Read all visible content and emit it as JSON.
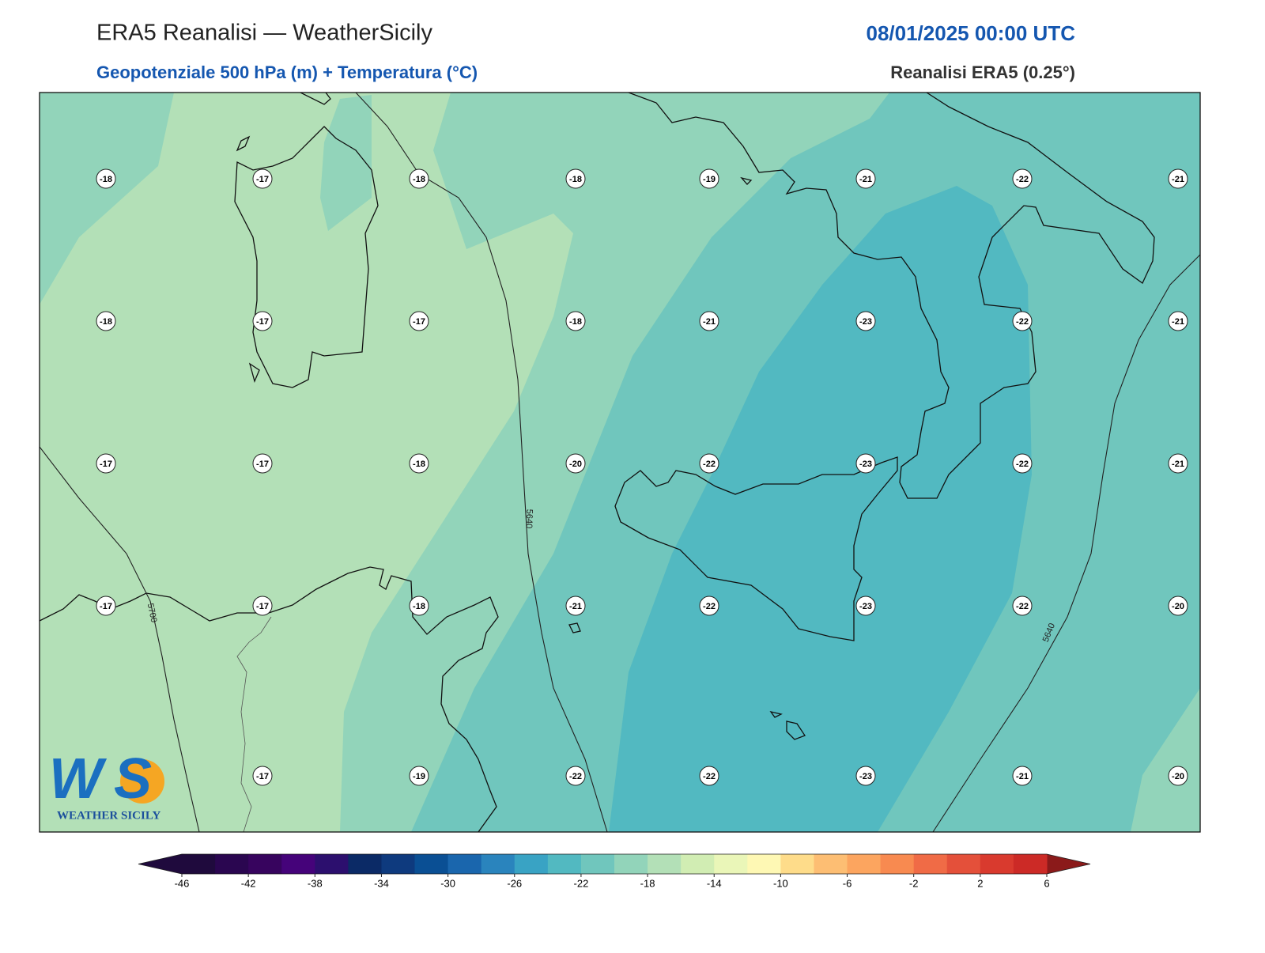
{
  "header": {
    "title": "ERA5 Reanalisi — WeatherSicily",
    "datetime": "08/01/2025 00:00 UTC",
    "subtitle": "Geopotenziale 500 hPa (m) + Temperatura (°C)",
    "source": "Reanalisi ERA5 (0.25°)"
  },
  "stations": {
    "rows": [
      [
        -18,
        -17,
        -18,
        -18,
        -19,
        -21,
        -22,
        -21
      ],
      [
        -18,
        -17,
        -17,
        -18,
        -21,
        -23,
        -22,
        -21
      ],
      [
        -17,
        -17,
        -18,
        -20,
        -22,
        -23,
        -22,
        -21
      ],
      [
        -17,
        -17,
        -18,
        -21,
        -22,
        -23,
        -22,
        -20
      ],
      [
        null,
        -17,
        -19,
        -22,
        -22,
        -23,
        -21,
        -20
      ]
    ]
  },
  "contour_labels": [
    "5640",
    "5700",
    "5640"
  ],
  "colorbar": {
    "ticks": [
      -46,
      -42,
      -38,
      -34,
      -30,
      -26,
      -22,
      -18,
      -14,
      -10,
      -6,
      -2,
      2,
      6
    ],
    "colors": [
      "#1f0a3d",
      "#2a0650",
      "#37045e",
      "#45037a",
      "#2c0f6e",
      "#0b2a66",
      "#0e3a7e",
      "#0a4f94",
      "#1a66ad",
      "#2a84bd",
      "#39a3c4",
      "#52b9c1",
      "#70c6bd",
      "#92d4ba",
      "#b3e0b7",
      "#d1edb3",
      "#eaf6b8",
      "#fef8b4",
      "#fedc8a",
      "#fdbe73",
      "#fca55f",
      "#f88a50",
      "#f06b46",
      "#e4503a",
      "#d93a2e",
      "#cc2a26"
    ]
  },
  "logo": {
    "mark": "WS",
    "caption": "WEATHER SICILY"
  }
}
